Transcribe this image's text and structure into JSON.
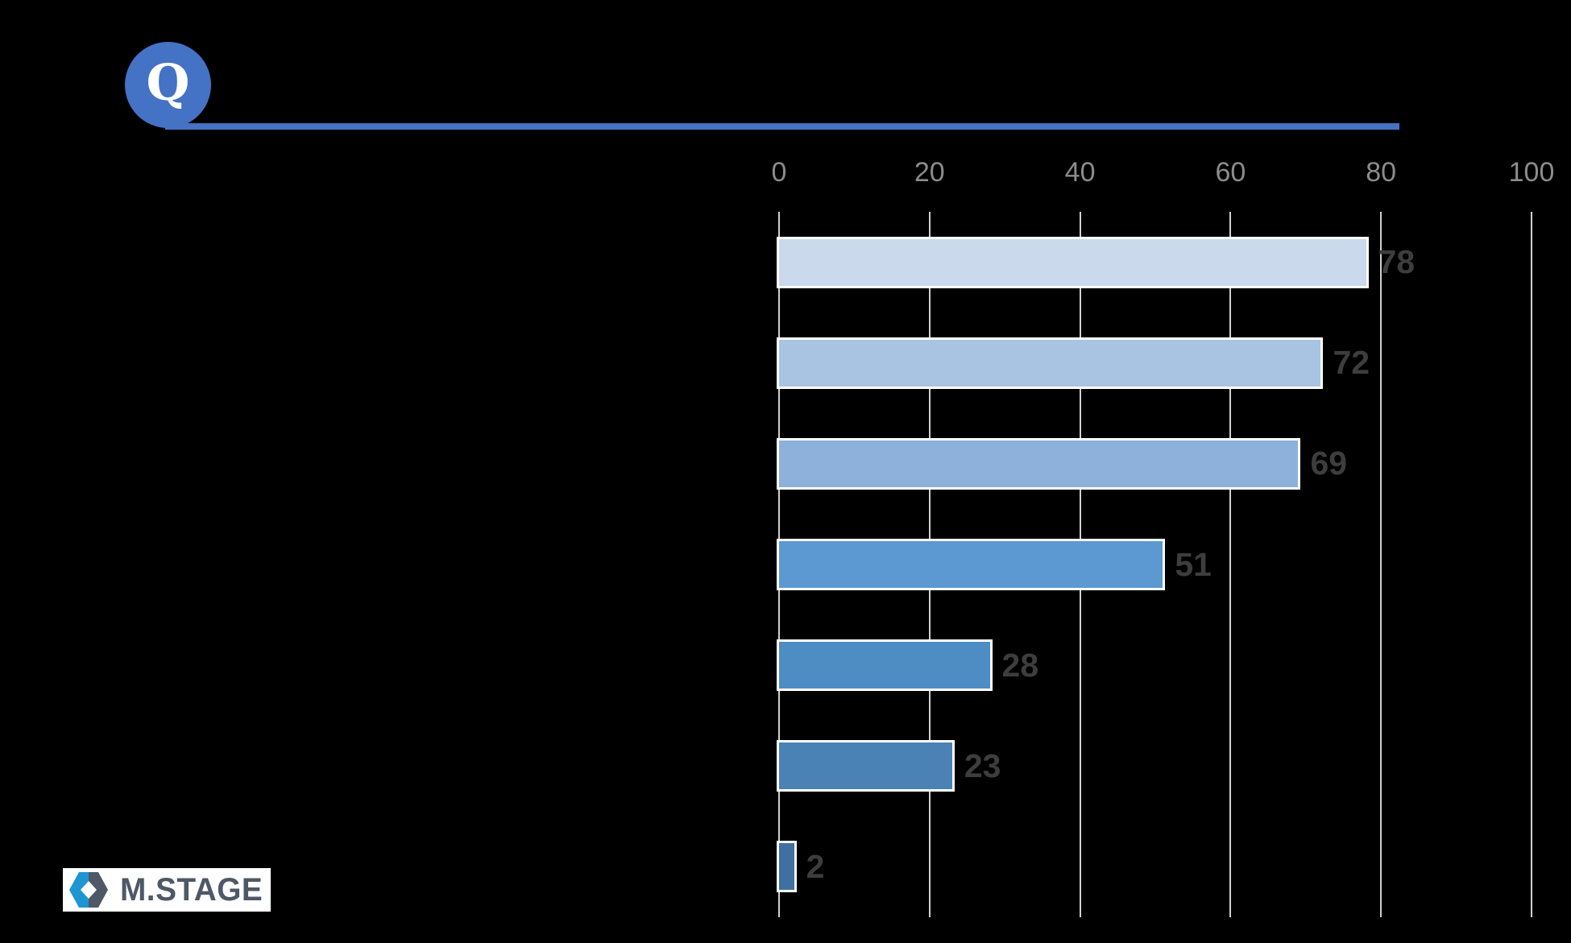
{
  "slide": {
    "background_color": "#000000"
  },
  "header": {
    "badge_label": "Q",
    "accent_color": "#4472C4"
  },
  "chart_data": {
    "type": "bar",
    "orientation": "horizontal",
    "title": "",
    "xlabel": "",
    "ylabel": "",
    "xlim": [
      0,
      100
    ],
    "x_ticks": [
      "0",
      "20",
      "40",
      "60",
      "80",
      "100"
    ],
    "grid": true,
    "legend": false,
    "categories": [
      "",
      "",
      "",
      "",
      "",
      "",
      ""
    ],
    "values": [
      78,
      72,
      69,
      51,
      28,
      23,
      2
    ],
    "bar_colors": [
      "#CAD9EB",
      "#A9C3E2",
      "#8DB1DB",
      "#5C98D2",
      "#4E8CC4",
      "#4B82B6",
      "#40709F"
    ],
    "bar_border_color": "#FFFFFF",
    "gridline_color": "#D0D0D0",
    "tick_label_color": "#8C8C8C",
    "data_label_color": "#3D3D3D"
  },
  "footer_logo": {
    "text": "M.STAGE",
    "icon": "hexagon-gem-icon",
    "background_color": "#FFFFFF",
    "text_color": "#4E5866",
    "icon_blue": "#1E96D2",
    "icon_dark": "#4E5866"
  }
}
